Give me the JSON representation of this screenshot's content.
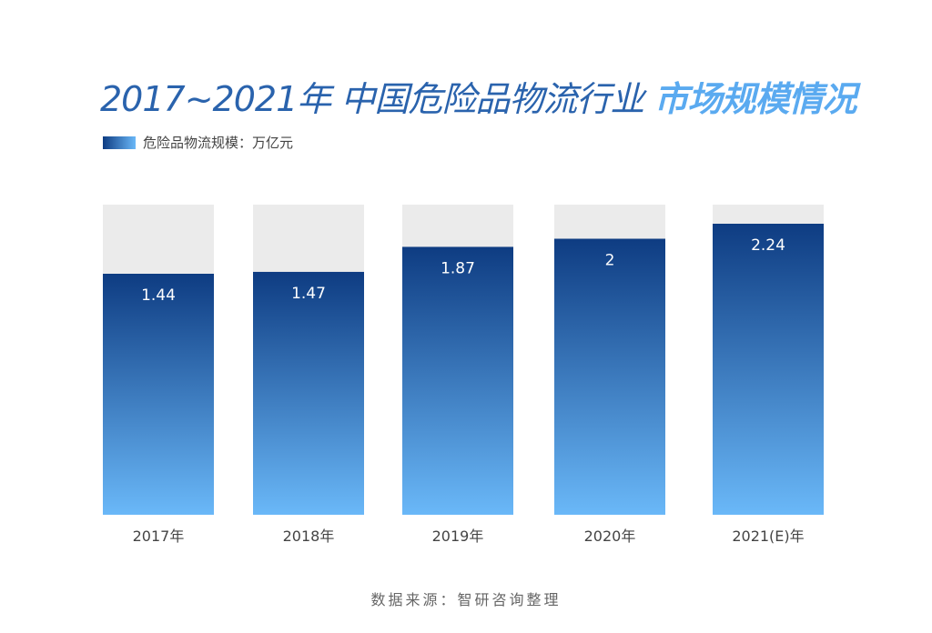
{
  "chart_data": {
    "type": "bar",
    "title_part1": "2017~2021年 中国危险品物流行业",
    "title_part2": "市场规模情况",
    "legend": [
      {
        "name": "危险品物流规模：万亿元"
      }
    ],
    "categories": [
      "2017年",
      "2018年",
      "2019年",
      "2020年",
      "2021(E)年"
    ],
    "values": [
      1.44,
      1.47,
      1.87,
      2,
      2.24
    ],
    "value_labels": [
      "1.44",
      "1.47",
      "1.87",
      "2",
      "2.24"
    ],
    "legend_placement": "top-left",
    "grid": false,
    "colors": {
      "bar_top": "#0e3c82",
      "bar_bottom": "#6ab8f8",
      "track": "#ebebeb",
      "title": "#2a63ad",
      "title_accent": "#5aaaf0"
    }
  },
  "source": "数据来源：智研咨询整理"
}
